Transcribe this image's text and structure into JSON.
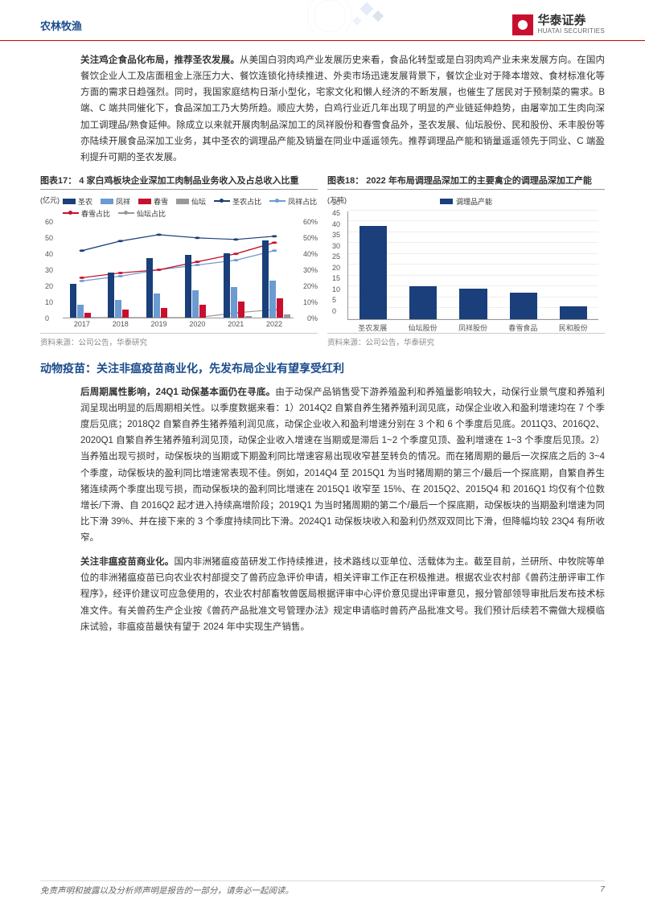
{
  "header": {
    "category": "农林牧渔",
    "logo_cn": "华泰证券",
    "logo_en": "HUATAI SECURITIES"
  },
  "para1_lead": "关注鸡企食品化布局，推荐圣农发展。",
  "para1_body": "从美国白羽肉鸡产业发展历史来看，食品化转型或是白羽肉鸡产业未来发展方向。在国内餐饮企业人工及店面租金上涨压力大、餐饮连锁化持续推进、外卖市场迅速发展背景下，餐饮企业对于降本增效、食材标准化等方面的需求日趋强烈。同时，我国家庭结构日渐小型化，宅家文化和懒人经济的不断发展，也催生了居民对于预制菜的需求。B 端、C 端共同催化下，食品深加工乃大势所趋。顺应大势，白鸡行业近几年出现了明显的产业链延伸趋势，由屠宰加工生肉向深加工调理品/熟食延伸。除成立以来就开展肉制品深加工的凤祥股份和春雪食品外，圣农发展、仙坛股份、民和股份、禾丰股份等亦陆续开展食品深加工业务，其中圣农的调理品产能及销量在同业中遥遥领先。推荐调理品产能和销量遥遥领先于同业、C 端盈利提升可期的圣农发展。",
  "chart17": {
    "title": "图表17： 4 家白鸡板块企业深加工肉制品业务收入及占总收入比重",
    "unit_left": "(亿元)",
    "legend_bars": [
      "圣农",
      "凤祥",
      "春雪",
      "仙坛"
    ],
    "legend_lines": [
      "圣农占比",
      "凤祥占比",
      "春雪占比",
      "仙坛占比"
    ],
    "years": [
      "2017",
      "2018",
      "2019",
      "2020",
      "2021",
      "2022"
    ],
    "y_left_ticks": [
      0,
      10,
      20,
      30,
      40,
      50,
      60
    ],
    "y_left_max": 60,
    "y_right_ticks": [
      "0%",
      "10%",
      "20%",
      "30%",
      "40%",
      "50%",
      "60%"
    ],
    "y_right_max": 60,
    "bars_shengnong": [
      21,
      28,
      37,
      39,
      40,
      48
    ],
    "bars_fengxiang": [
      8,
      11,
      15,
      17,
      19,
      23
    ],
    "bars_chunxue": [
      3,
      5,
      6,
      8,
      10,
      12
    ],
    "bars_xiantan": [
      0,
      0,
      0,
      0,
      1,
      2
    ],
    "line_shengnong_pct": [
      42,
      48,
      52,
      50,
      49,
      51
    ],
    "line_fengxiang_pct": [
      23,
      26,
      30,
      33,
      36,
      42
    ],
    "line_chunxue_pct": [
      25,
      28,
      30,
      35,
      40,
      47
    ],
    "line_xiantan_pct": [
      0,
      0,
      0,
      0,
      3,
      5
    ],
    "bar_colors": [
      "#1a3f7a",
      "#6b9bd1",
      "#c8102e",
      "#999999"
    ],
    "source": "资料来源：公司公告，华泰研究"
  },
  "chart18": {
    "title": "图表18： 2022 年布局调理品深加工的主要禽企的调理品深加工产能",
    "unit": "(万吨)",
    "legend": "调理品产能",
    "categories": [
      "圣农发展",
      "仙坛股份",
      "凤祥股份",
      "春雪食品",
      "民和股份"
    ],
    "values": [
      43,
      15,
      14,
      12,
      6
    ],
    "y_ticks": [
      0,
      5,
      10,
      15,
      20,
      25,
      30,
      35,
      40,
      45,
      50
    ],
    "y_max": 50,
    "bar_color": "#1a3f7a",
    "source": "资料来源：公司公告，华泰研究"
  },
  "section_title": "动物疫苗：关注非瘟疫苗商业化，先发布局企业有望享受红利",
  "para2_lead": "后周期属性影响，24Q1 动保基本面仍在寻底。",
  "para2_body": "由于动保产品销售受下游养殖盈利和养殖量影响较大，动保行业景气度和养殖利润呈现出明显的后周期相关性。以季度数据来看：1）2014Q2 自繁自养生猪养殖利润见底，动保企业收入和盈利增速均在 7 个季度后见底；2018Q2 自繁自养生猪养殖利润见底，动保企业收入和盈利增速分别在 3 个和 6 个季度后见底。2011Q3、2016Q2、2020Q1 自繁自养生猪养殖利润见顶，动保企业收入增速在当期或是滞后 1~2 个季度见顶、盈利增速在 1~3 个季度后见顶。2）当养殖出现亏损时，动保板块的当期或下期盈利同比增速容易出现收窄甚至转负的情况。而在猪周期的最后一次探底之后的 3~4 个季度，动保板块的盈利同比增速常表现不佳。例如，2014Q4 至 2015Q1 为当时猪周期的第三个/最后一个探底期，自繁自养生猪连续两个季度出现亏损，而动保板块的盈利同比增速在 2015Q1 收窄至 15%、在 2015Q2、2015Q4 和 2016Q1 均仅有个位数增长/下滑、自 2016Q2 起才进入持续高增阶段；2019Q1 为当时猪周期的第二个/最后一个探底期，动保板块的当期盈利增速为同比下滑 39%、并在接下来的 3 个季度持续同比下滑。2024Q1 动保板块收入和盈利仍然双双同比下滑，但降幅均较 23Q4 有所收窄。",
  "para3_lead": "关注非瘟疫苗商业化。",
  "para3_body": "国内非洲猪瘟疫苗研发工作持续推进，技术路线以亚单位、活载体为主。截至目前，兰研所、中牧院等单位的非洲猪瘟疫苗已向农业农村部提交了兽药应急评价申请，相关评审工作正在积极推进。根据农业农村部《兽药注册评审工作程序》，经评价建议可应急使用的，农业农村部畜牧兽医局根据评审中心评价意见提出评审意见，报分管部领导审批后发布技术标准文件。有关兽药生产企业按《兽药产品批准文号管理办法》规定申请临时兽药产品批准文号。我们预计后续若不需做大规模临床试验，非瘟疫苗最快有望于 2024 年中实现生产销售。",
  "footer": {
    "disclaimer": "免责声明和披露以及分析师声明是报告的一部分，请务必一起阅读。",
    "page": "7"
  }
}
